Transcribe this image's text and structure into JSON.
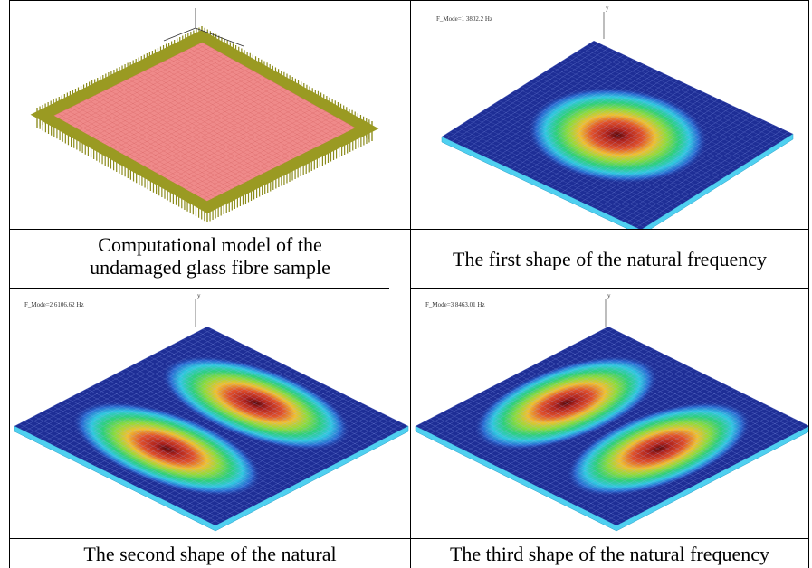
{
  "cells": [
    {
      "caption": [
        "Computational model of the",
        "undamaged glass fibre sample"
      ]
    },
    {
      "plot_label": "F_Mode=1    3802.2    Hz",
      "axis_label": "y",
      "caption": [
        "The first shape of the natural frequency"
      ]
    },
    {
      "plot_label": "F_Mode=2    6106.62    Hz",
      "axis_label": "y",
      "caption": [
        "The second shape of the natural"
      ]
    },
    {
      "plot_label": "F_Mode=3    8463.01    Hz",
      "axis_label": "y",
      "caption": [
        "The third shape of the natural frequency"
      ]
    }
  ]
}
